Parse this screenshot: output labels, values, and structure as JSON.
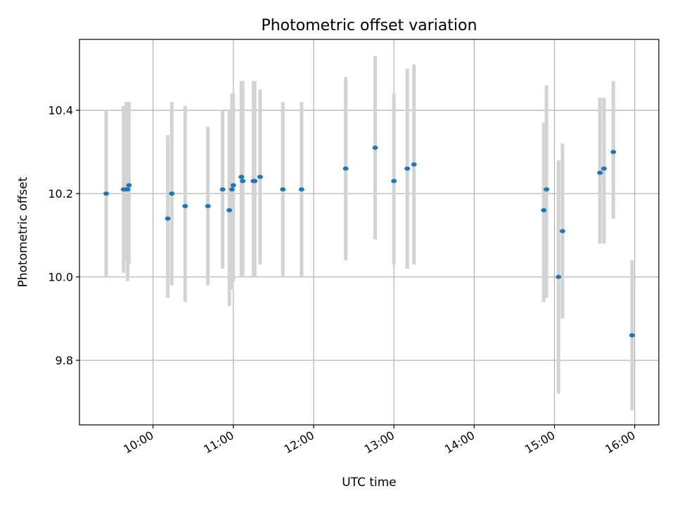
{
  "chart_data": {
    "type": "scatter",
    "title": "Photometric offset variation",
    "xlabel": "UTC time",
    "ylabel": "Photometric offset",
    "x_axis_type": "time",
    "xlim": [
      "09:05",
      "16:18"
    ],
    "ylim": [
      9.645,
      10.57
    ],
    "grid": true,
    "x_ticks": [
      "10:00",
      "11:00",
      "12:00",
      "13:00",
      "14:00",
      "15:00",
      "16:00"
    ],
    "y_ticks": [
      9.8,
      10.0,
      10.2,
      10.4
    ],
    "y_tick_labels": [
      "9.8",
      "10.0",
      "10.2",
      "10.4"
    ],
    "colors": {
      "marker": "#1f77b4",
      "errorbar": "#d3d3d3",
      "grid": "#b0b0b0"
    },
    "points": [
      {
        "x": "09:25",
        "y": 10.2,
        "ylow": 10.0,
        "yhigh": 10.4
      },
      {
        "x": "09:38",
        "y": 10.21,
        "ylow": 10.01,
        "yhigh": 10.41
      },
      {
        "x": "09:40",
        "y": 10.21,
        "ylow": 10.04,
        "yhigh": 10.42
      },
      {
        "x": "09:41",
        "y": 10.21,
        "ylow": 9.99,
        "yhigh": 10.42
      },
      {
        "x": "09:42",
        "y": 10.22,
        "ylow": 10.03,
        "yhigh": 10.42
      },
      {
        "x": "10:11",
        "y": 10.14,
        "ylow": 9.95,
        "yhigh": 10.34
      },
      {
        "x": "10:14",
        "y": 10.2,
        "ylow": 9.98,
        "yhigh": 10.42
      },
      {
        "x": "10:24",
        "y": 10.17,
        "ylow": 9.94,
        "yhigh": 10.41
      },
      {
        "x": "10:41",
        "y": 10.17,
        "ylow": 9.98,
        "yhigh": 10.36
      },
      {
        "x": "10:52",
        "y": 10.21,
        "ylow": 10.02,
        "yhigh": 10.4
      },
      {
        "x": "10:57",
        "y": 10.16,
        "ylow": 9.93,
        "yhigh": 10.4
      },
      {
        "x": "10:59",
        "y": 10.21,
        "ylow": 9.97,
        "yhigh": 10.44
      },
      {
        "x": "11:00",
        "y": 10.22,
        "ylow": 9.99,
        "yhigh": 10.44
      },
      {
        "x": "11:06",
        "y": 10.24,
        "ylow": 10.0,
        "yhigh": 10.47
      },
      {
        "x": "11:07",
        "y": 10.23,
        "ylow": 10.0,
        "yhigh": 10.47
      },
      {
        "x": "11:15",
        "y": 10.23,
        "ylow": 10.0,
        "yhigh": 10.47
      },
      {
        "x": "11:16",
        "y": 10.23,
        "ylow": 10.0,
        "yhigh": 10.47
      },
      {
        "x": "11:20",
        "y": 10.24,
        "ylow": 10.03,
        "yhigh": 10.45
      },
      {
        "x": "11:37",
        "y": 10.21,
        "ylow": 10.0,
        "yhigh": 10.42
      },
      {
        "x": "11:51",
        "y": 10.21,
        "ylow": 10.0,
        "yhigh": 10.42
      },
      {
        "x": "12:24",
        "y": 10.26,
        "ylow": 10.04,
        "yhigh": 10.48
      },
      {
        "x": "12:46",
        "y": 10.31,
        "ylow": 10.09,
        "yhigh": 10.53
      },
      {
        "x": "13:00",
        "y": 10.23,
        "ylow": 10.03,
        "yhigh": 10.44
      },
      {
        "x": "13:10",
        "y": 10.26,
        "ylow": 10.02,
        "yhigh": 10.5
      },
      {
        "x": "13:15",
        "y": 10.27,
        "ylow": 10.03,
        "yhigh": 10.51
      },
      {
        "x": "14:52",
        "y": 10.16,
        "ylow": 9.94,
        "yhigh": 10.37
      },
      {
        "x": "14:54",
        "y": 10.21,
        "ylow": 9.95,
        "yhigh": 10.46
      },
      {
        "x": "15:03",
        "y": 10.0,
        "ylow": 9.72,
        "yhigh": 10.28
      },
      {
        "x": "15:06",
        "y": 10.11,
        "ylow": 9.9,
        "yhigh": 10.32
      },
      {
        "x": "15:34",
        "y": 10.25,
        "ylow": 10.08,
        "yhigh": 10.43
      },
      {
        "x": "15:37",
        "y": 10.26,
        "ylow": 10.08,
        "yhigh": 10.43
      },
      {
        "x": "15:44",
        "y": 10.3,
        "ylow": 10.14,
        "yhigh": 10.47
      },
      {
        "x": "15:58",
        "y": 9.86,
        "ylow": 9.68,
        "yhigh": 10.04
      }
    ]
  }
}
